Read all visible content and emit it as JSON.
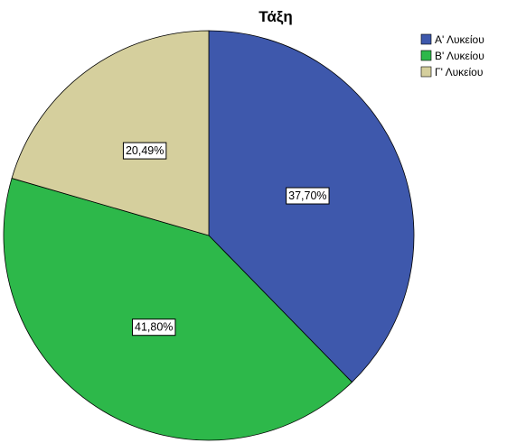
{
  "chart_data": {
    "type": "pie",
    "title": "Τάξη",
    "categories": [
      "Α' Λυκείου",
      "Β' Λυκείου",
      "Γ' Λυκείου"
    ],
    "values": [
      37.7,
      41.8,
      20.49
    ],
    "value_labels": [
      "37,70%",
      "41,80%",
      "20,49%"
    ],
    "colors": [
      "#3e58ac",
      "#2db84a",
      "#d5cf9d"
    ],
    "start_angle": "12 o'clock",
    "direction": "clockwise",
    "legend_position": "top-right"
  }
}
